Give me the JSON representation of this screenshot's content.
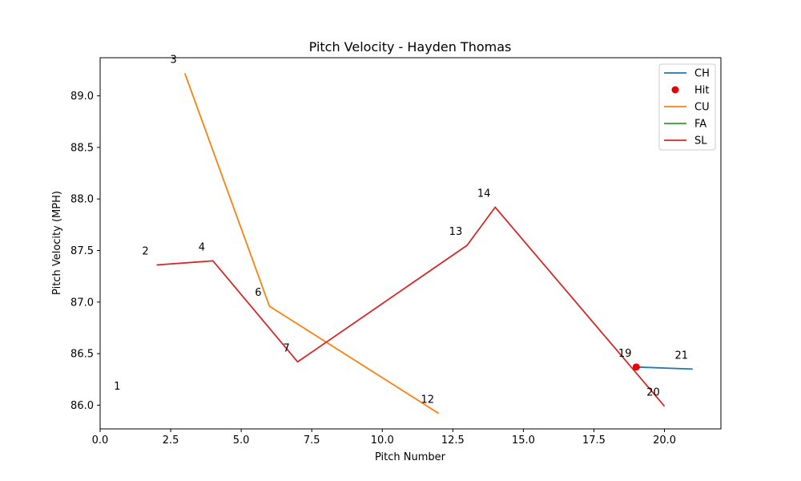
{
  "chart_data": {
    "type": "line",
    "title": "Pitch Velocity - Hayden Thomas",
    "xlabel": "Pitch Number",
    "ylabel": "Pitch Velocity (MPH)",
    "xlim": [
      0,
      22
    ],
    "ylim": [
      85.77,
      89.37
    ],
    "xticks": [
      0.0,
      2.5,
      5.0,
      7.5,
      10.0,
      12.5,
      15.0,
      17.5,
      20.0
    ],
    "xtick_labels": [
      "0.0",
      "2.5",
      "5.0",
      "7.5",
      "10.0",
      "12.5",
      "15.0",
      "17.5",
      "20.0"
    ],
    "yticks": [
      86.0,
      86.5,
      87.0,
      87.5,
      88.0,
      88.5,
      89.0
    ],
    "ytick_labels": [
      "86.0",
      "86.5",
      "87.0",
      "87.5",
      "88.0",
      "88.5",
      "89.0"
    ],
    "grid": false,
    "legend_position": "top-right",
    "legend": [
      {
        "label": "CH",
        "kind": "line",
        "color": "#1f77b4"
      },
      {
        "label": "Hit",
        "kind": "marker",
        "color": "#e60000"
      },
      {
        "label": "CU",
        "kind": "line",
        "color": "#ff7f0e"
      },
      {
        "label": "FA",
        "kind": "line",
        "color": "#2ca02c"
      },
      {
        "label": "SL",
        "kind": "line",
        "color": "#d62728"
      }
    ],
    "series": [
      {
        "name": "CH",
        "color": "#1f77b4",
        "points": [
          [
            19,
            86.37
          ],
          [
            21,
            86.35
          ]
        ]
      },
      {
        "name": "CU",
        "color": "#ff7f0e",
        "points": [
          [
            3,
            89.22
          ],
          [
            6,
            86.96
          ],
          [
            12,
            85.92
          ]
        ]
      },
      {
        "name": "FA",
        "color": "#2ca02c",
        "points": [
          [
            1,
            86.05
          ]
        ]
      },
      {
        "name": "SL",
        "color": "#d62728",
        "points": [
          [
            2,
            87.36
          ],
          [
            4,
            87.4
          ],
          [
            7,
            86.42
          ],
          [
            13,
            87.55
          ],
          [
            14,
            87.92
          ],
          [
            20,
            85.99
          ]
        ]
      }
    ],
    "hits": [
      {
        "x": 19,
        "y": 86.37,
        "color": "#e60000"
      }
    ],
    "point_labels": [
      {
        "text": "1",
        "x": 1,
        "y": 86.05
      },
      {
        "text": "2",
        "x": 2,
        "y": 87.36
      },
      {
        "text": "3",
        "x": 3,
        "y": 89.22
      },
      {
        "text": "4",
        "x": 4,
        "y": 87.4
      },
      {
        "text": "6",
        "x": 6,
        "y": 86.96
      },
      {
        "text": "7",
        "x": 7,
        "y": 86.42
      },
      {
        "text": "12",
        "x": 12,
        "y": 85.92
      },
      {
        "text": "13",
        "x": 13,
        "y": 87.55
      },
      {
        "text": "14",
        "x": 14,
        "y": 87.92
      },
      {
        "text": "19",
        "x": 19,
        "y": 86.37
      },
      {
        "text": "20",
        "x": 20,
        "y": 85.99
      },
      {
        "text": "21",
        "x": 21,
        "y": 86.35
      }
    ]
  }
}
